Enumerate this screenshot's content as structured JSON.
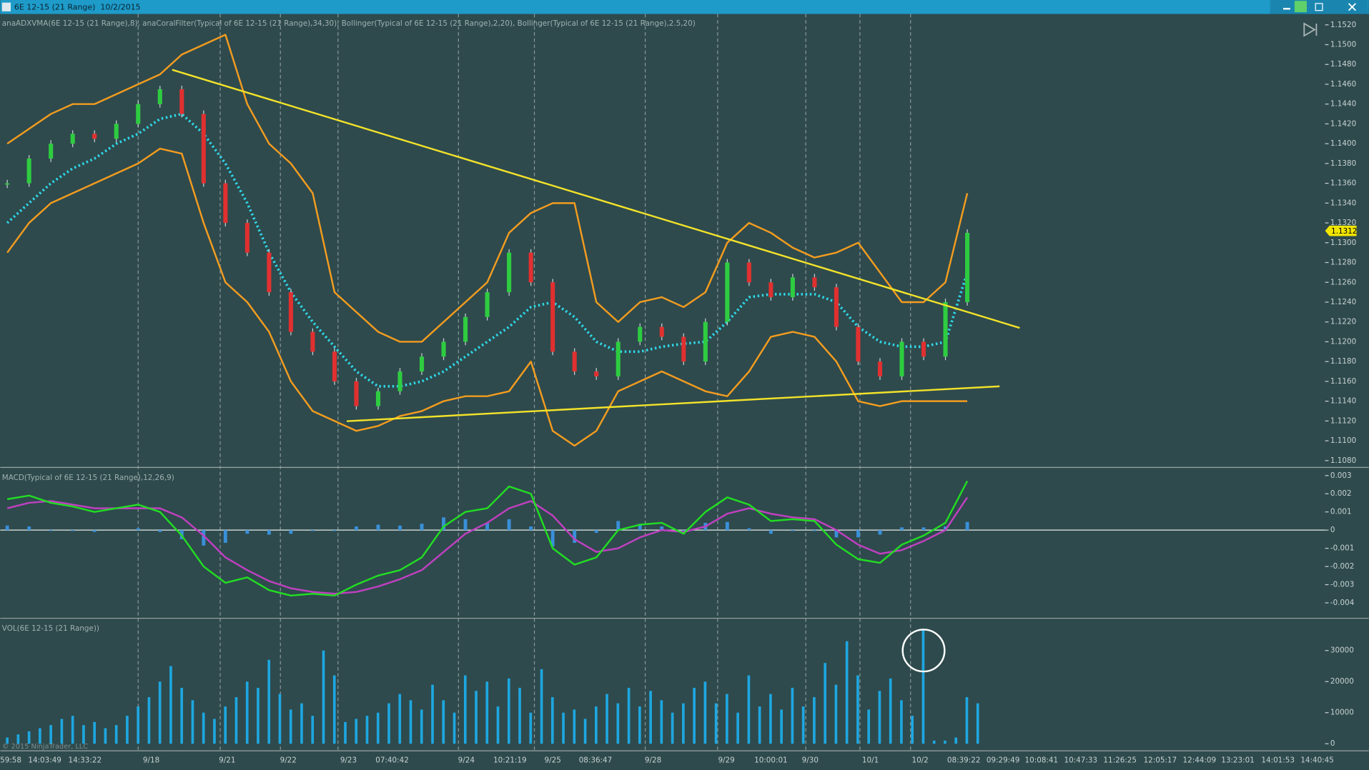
{
  "window": {
    "title": "6E 12-15 (21 Range)  10/2/2015"
  },
  "copyright": "© 2015 NinjaTrader, LLC",
  "x_labels": [
    "59:58",
    "14:03:49",
    "14:33:22",
    "9/18",
    "9/21",
    "9/22",
    "9/23",
    "07:40:42",
    "9/24",
    "10:21:19",
    "9/25",
    "08:36:47",
    "9/28",
    "9/29",
    "10:00:01",
    "9/30",
    "10/1",
    "10/2",
    "08:39:22",
    "09:29:49",
    "10:08:41",
    "10:47:33",
    "11:26:25",
    "12:05:17",
    "12:44:09",
    "13:23:01",
    "14:01:53",
    "14:40:45"
  ],
  "chart_data": [
    {
      "type": "candlestick",
      "title": "anaADXVMA(6E 12-15 (21 Range),8), anaCoralFilter(Typical of 6E 12-15 (21 Range),34,30), Bollinger(Typical of 6E 12-15 (21 Range),2,20), Bollinger(Typical of 6E 12-15 (21 Range),2.5,20)",
      "up_color": "#2ecc40",
      "down_color": "#e03030",
      "values": [
        1.136,
        1.1385,
        1.14,
        1.141,
        1.1405,
        1.142,
        1.144,
        1.1455,
        1.143,
        1.136,
        1.132,
        1.129,
        1.125,
        1.121,
        1.119,
        1.116,
        1.1135,
        1.115,
        1.117,
        1.1185,
        1.12,
        1.1225,
        1.125,
        1.129,
        1.126,
        1.119,
        1.117,
        1.1165,
        1.12,
        1.1215,
        1.1205,
        1.118,
        1.122,
        1.128,
        1.126,
        1.1245,
        1.1265,
        1.1255,
        1.1215,
        1.118,
        1.1165,
        1.12,
        1.1185,
        1.124,
        1.131
      ],
      "series": [
        {
          "color": "#f39c1f",
          "style": "line",
          "values": [
            1.14,
            1.1415,
            1.143,
            1.144,
            1.144,
            1.145,
            1.146,
            1.147,
            1.149,
            1.15,
            1.151,
            1.144,
            1.14,
            1.138,
            1.135,
            1.125,
            1.123,
            1.121,
            1.12,
            1.12,
            1.122,
            1.124,
            1.126,
            1.131,
            1.133,
            1.134,
            1.134,
            1.124,
            1.122,
            1.124,
            1.1245,
            1.1235,
            1.125,
            1.13,
            1.132,
            1.131,
            1.1295,
            1.1285,
            1.129,
            1.13,
            1.127,
            1.124,
            1.124,
            1.126,
            1.135
          ]
        },
        {
          "color": "#f39c1f",
          "style": "line",
          "values": [
            1.129,
            1.132,
            1.134,
            1.135,
            1.136,
            1.137,
            1.138,
            1.1395,
            1.139,
            1.132,
            1.126,
            1.124,
            1.121,
            1.116,
            1.113,
            1.112,
            1.111,
            1.1115,
            1.1125,
            1.113,
            1.114,
            1.1145,
            1.1145,
            1.115,
            1.118,
            1.111,
            1.1095,
            1.111,
            1.115,
            1.116,
            1.117,
            1.116,
            1.115,
            1.1145,
            1.117,
            1.1205,
            1.121,
            1.1205,
            1.118,
            1.114,
            1.1135,
            1.114,
            1.114,
            1.114,
            1.114
          ]
        },
        {
          "color": "#2fd8e8",
          "style": "dotted",
          "values": [
            1.132,
            1.134,
            1.136,
            1.1375,
            1.1385,
            1.14,
            1.141,
            1.1425,
            1.143,
            1.141,
            1.138,
            1.134,
            1.129,
            1.125,
            1.122,
            1.1195,
            1.117,
            1.1155,
            1.1155,
            1.116,
            1.117,
            1.1185,
            1.12,
            1.1215,
            1.1235,
            1.124,
            1.1225,
            1.12,
            1.119,
            1.119,
            1.1195,
            1.1198,
            1.12,
            1.122,
            1.1245,
            1.1248,
            1.1248,
            1.1248,
            1.124,
            1.1215,
            1.12,
            1.1195,
            1.1195,
            1.12,
            1.127
          ]
        }
      ],
      "last_price": {
        "value": 1.1312,
        "label": "1.1312"
      },
      "ylim": [
        1.1074,
        1.1531
      ],
      "yticks": [
        {
          "value": 1.152,
          "label": "1.1520"
        },
        {
          "value": 1.15,
          "label": "1.1500"
        },
        {
          "value": 1.148,
          "label": "1.1480"
        },
        {
          "value": 1.146,
          "label": "1.1460"
        },
        {
          "value": 1.144,
          "label": "1.1440"
        },
        {
          "value": 1.142,
          "label": "1.1420"
        },
        {
          "value": 1.14,
          "label": "1.1400"
        },
        {
          "value": 1.138,
          "label": "1.1380"
        },
        {
          "value": 1.136,
          "label": "1.1360"
        },
        {
          "value": 1.134,
          "label": "1.1340"
        },
        {
          "value": 1.132,
          "label": "1.1320"
        },
        {
          "value": 1.13,
          "label": "1.1300"
        },
        {
          "value": 1.128,
          "label": "1.1280"
        },
        {
          "value": 1.126,
          "label": "1.1260"
        },
        {
          "value": 1.124,
          "label": "1.1240"
        },
        {
          "value": 1.122,
          "label": "1.1220"
        },
        {
          "value": 1.12,
          "label": "1.1200"
        },
        {
          "value": 1.118,
          "label": "1.1180"
        },
        {
          "value": 1.116,
          "label": "1.1160"
        },
        {
          "value": 1.114,
          "label": "1.1140"
        },
        {
          "value": 1.112,
          "label": "1.1120"
        },
        {
          "value": 1.11,
          "label": "1.1100"
        },
        {
          "value": 1.108,
          "label": "1.1080"
        }
      ]
    },
    {
      "type": "macd",
      "title": "MACD(Typical of 6E 12-15 (21 Range),12,26,9)",
      "series": [
        {
          "color": "#3a8fd8",
          "style": "bar",
          "values": [
            0.00025,
            0.0002,
            -5e-05,
            -5e-05,
            -0.0001,
            0,
            0.0001,
            -0.0001,
            -0.0005,
            -0.00085,
            -0.0007,
            -0.0002,
            -0.00025,
            -0.0002,
            -5e-05,
            -5e-05,
            0.0002,
            0.0003,
            0.00025,
            0.00035,
            0.0007,
            0.0006,
            0.0004,
            0.0006,
            0.0002,
            -0.0009,
            -0.0007,
            -0.00015,
            0.0005,
            0.00035,
            0.0002,
            -5e-05,
            0.0004,
            0.00045,
            0.0001,
            -0.0002,
            -5e-05,
            -5e-05,
            -0.0004,
            -0.0004,
            -0.00025,
            0.00015,
            0.00015,
            0.0002,
            0.00045
          ]
        },
        {
          "color": "#c040c0",
          "style": "line",
          "values": [
            0.0012,
            0.0015,
            0.0016,
            0.0014,
            0.0012,
            0.0012,
            0.0012,
            0.0012,
            0.0007,
            -0.0003,
            -0.0015,
            -0.0022,
            -0.0028,
            -0.0032,
            -0.0034,
            -0.0035,
            -0.0034,
            -0.0031,
            -0.0027,
            -0.0022,
            -0.0012,
            -0.0002,
            0.0004,
            0.0012,
            0.0016,
            0.0008,
            -0.0005,
            -0.0012,
            -0.001,
            -0.0004,
            0,
            -0.0001,
            0.0002,
            0.0009,
            0.0012,
            0.0009,
            0.0007,
            0.0006,
            0,
            -0.0008,
            -0.0013,
            -0.0011,
            -0.0006,
            0,
            0.0018
          ]
        },
        {
          "color": "#22dd22",
          "style": "line",
          "values": [
            0.0017,
            0.0019,
            0.0015,
            0.0013,
            0.001,
            0.0012,
            0.0014,
            0.001,
            -0.0003,
            -0.002,
            -0.0029,
            -0.0026,
            -0.0033,
            -0.0036,
            -0.0035,
            -0.0036,
            -0.003,
            -0.0025,
            -0.0022,
            -0.0015,
            0.0002,
            0.001,
            0.0012,
            0.0024,
            0.002,
            -0.001,
            -0.0019,
            -0.0015,
            0,
            0.0003,
            0.0004,
            -0.0002,
            0.001,
            0.0018,
            0.0014,
            0.0005,
            0.0006,
            0.0005,
            -0.0008,
            -0.0016,
            -0.0018,
            -0.0008,
            -0.0003,
            0.0004,
            0.0027
          ]
        }
      ],
      "ylim": [
        -0.0048,
        0.0034
      ],
      "yticks": [
        0.003,
        0.002,
        0.001,
        0,
        -0.001,
        -0.002,
        -0.003,
        -0.004
      ]
    },
    {
      "type": "bar",
      "title": "VOL(6E 12-15 (21 Range))",
      "color": "#1ea7e0",
      "values": [
        2000,
        3000,
        4000,
        5000,
        6000,
        8000,
        9000,
        6000,
        7000,
        5000,
        6000,
        9000,
        12000,
        15000,
        20000,
        25000,
        18000,
        14000,
        10000,
        8000,
        12000,
        15000,
        20000,
        18000,
        27000,
        16000,
        11000,
        13000,
        9000,
        30000,
        22000,
        7000,
        8000,
        9000,
        10000,
        13000,
        16000,
        14000,
        11000,
        19000,
        14000,
        10000,
        22000,
        17000,
        20000,
        12000,
        21000,
        18000,
        10000,
        24000,
        15000,
        10000,
        11000,
        8000,
        12000,
        16000,
        13000,
        18000,
        12000,
        17000,
        14000,
        10000,
        13000,
        18000,
        20000,
        13000,
        16000,
        10000,
        22000,
        12000,
        16000,
        11000,
        18000,
        12000,
        15000,
        26000,
        19000,
        33000,
        22000,
        11000,
        17000,
        21000,
        14000,
        9000,
        37000,
        1000,
        1000,
        2000,
        15000,
        13000
      ],
      "ylim": [
        -2000,
        40100
      ],
      "yticks": [
        0,
        10000,
        20000,
        30000
      ]
    }
  ]
}
